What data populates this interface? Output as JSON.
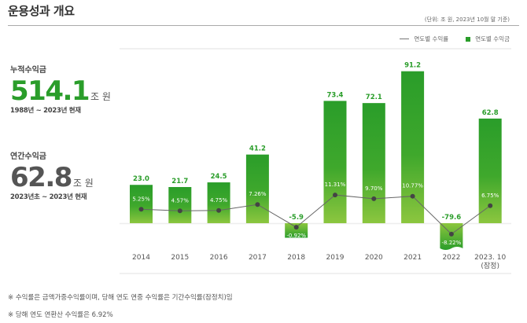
{
  "header": {
    "title": "운용성과 개요",
    "unit_note": "(단위: 조 원, 2023년 10월 말 기준)"
  },
  "legend": {
    "line_label": "연도별 수익률",
    "bar_label": "연도별 수익금"
  },
  "summary": {
    "cumulative": {
      "label": "누적수익금",
      "value": "514.1",
      "unit": "조 원",
      "period": "1988년 ~ 2023년 현재"
    },
    "annual": {
      "label": "연간수익금",
      "value": "62.8",
      "unit": "조 원",
      "period": "2023년초 ~ 2023년 현재"
    }
  },
  "colors": {
    "bar_top": "#2a9d2a",
    "bar_bottom": "#8cc63f",
    "value_label": "#2a9d2a",
    "line": "#666666",
    "marker": "#444444"
  },
  "chart_data": {
    "type": "bar",
    "title": "운용성과 개요",
    "xlabel": "",
    "ylabel": "조 원",
    "categories": [
      "2014",
      "2015",
      "2016",
      "2017",
      "2018",
      "2019",
      "2020",
      "2021",
      "2022",
      "2023. 10"
    ],
    "category_sublabels": [
      "",
      "",
      "",
      "",
      "",
      "",
      "",
      "",
      "",
      "(잠정)"
    ],
    "series": [
      {
        "name": "연도별 수익금",
        "type": "bar",
        "values": [
          23.0,
          21.7,
          24.5,
          41.2,
          -5.9,
          73.4,
          72.1,
          91.2,
          -79.6,
          62.8
        ],
        "labels": [
          "23.0",
          "21.7",
          "24.5",
          "41.2",
          "-5.9",
          "73.4",
          "72.1",
          "91.2",
          "-79.6",
          "62.8"
        ]
      },
      {
        "name": "연도별 수익률",
        "type": "line",
        "values": [
          5.25,
          4.57,
          4.75,
          7.26,
          -0.92,
          11.31,
          9.7,
          10.77,
          -8.22,
          6.75
        ],
        "labels": [
          "5.25%",
          "4.57%",
          "4.75%",
          "7.26%",
          "-0.92%",
          "11.31%",
          "9.70%",
          "10.77%",
          "-8.22%",
          "6.75%"
        ]
      }
    ],
    "legend_position": "top-right",
    "grid": false
  },
  "notes": [
    "※ 수익률은 금액가중수익률이며, 당해 연도 연중 수익률은 기간수익률(잠정치)임",
    "※ 당해 연도 연환산 수익률은 6.92%"
  ]
}
